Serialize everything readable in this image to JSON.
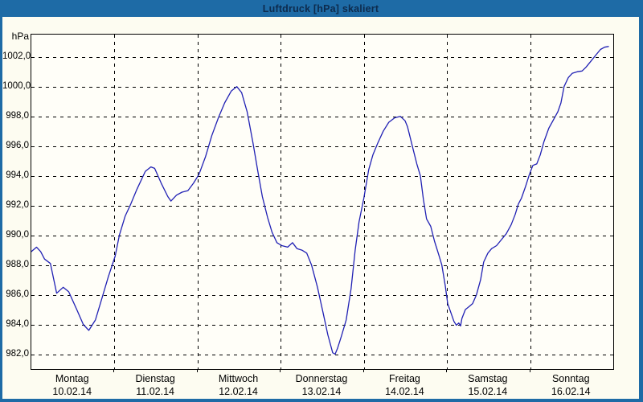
{
  "window": {
    "title": "Luftdruck [hPa] skaliert"
  },
  "colors": {
    "frame_and_titlebar": "#1e6ba6",
    "title_text": "#0d2b4d",
    "background": "#fdfcf1",
    "plot_background": "#fffef8",
    "plot_border": "#000000",
    "grid": "#000000",
    "line": "#2121b4"
  },
  "chart_data": {
    "type": "line",
    "title": "Luftdruck [hPa] skaliert",
    "unit_label": "hPa",
    "grid": "dashed, horizontal every 2 hPa and vertical at each day boundary",
    "legend": "none",
    "ylim": [
      981.0,
      1003.5
    ],
    "y_ticks": [
      1002,
      1000,
      998,
      996,
      994,
      992,
      990,
      988,
      986,
      984,
      982
    ],
    "y_tick_labels": [
      "1002,0",
      "1000,0",
      "998,0",
      "996,0",
      "994,0",
      "992,0",
      "990,0",
      "988,0",
      "986,0",
      "984,0",
      "982,0"
    ],
    "x_range_hours": [
      0,
      168
    ],
    "x_day_labels": [
      {
        "weekday": "Montag",
        "date": "10.02.14"
      },
      {
        "weekday": "Dienstag",
        "date": "11.02.14"
      },
      {
        "weekday": "Mittwoch",
        "date": "12.02.14"
      },
      {
        "weekday": "Donnerstag",
        "date": "13.02.14"
      },
      {
        "weekday": "Freitag",
        "date": "14.02.14"
      },
      {
        "weekday": "Samstag",
        "date": "15.02.14"
      },
      {
        "weekday": "Sonntag",
        "date": "16.02.14"
      }
    ],
    "series": [
      {
        "name": "Luftdruck",
        "color": "#2121b4",
        "points_hours_hpa": [
          [
            0,
            988.9
          ],
          [
            1.5,
            989.2
          ],
          [
            2.7,
            988.9
          ],
          [
            3.8,
            988.4
          ],
          [
            5.5,
            988.1
          ],
          [
            7.3,
            986.1
          ],
          [
            9.2,
            986.5
          ],
          [
            10.8,
            986.2
          ],
          [
            13.1,
            985.0
          ],
          [
            15.0,
            984.0
          ],
          [
            16.6,
            983.6
          ],
          [
            18.5,
            984.3
          ],
          [
            20.3,
            985.7
          ],
          [
            22.2,
            987.2
          ],
          [
            24.2,
            988.6
          ],
          [
            25.4,
            990.0
          ],
          [
            27.1,
            991.3
          ],
          [
            28.7,
            992.1
          ],
          [
            30.5,
            993.1
          ],
          [
            32.9,
            994.3
          ],
          [
            34.5,
            994.6
          ],
          [
            35.6,
            994.5
          ],
          [
            37.5,
            993.5
          ],
          [
            39.4,
            992.6
          ],
          [
            40.3,
            992.3
          ],
          [
            41.9,
            992.7
          ],
          [
            43.5,
            992.9
          ],
          [
            45.2,
            993.0
          ],
          [
            46.8,
            993.5
          ],
          [
            48.4,
            994.1
          ],
          [
            50.3,
            995.3
          ],
          [
            52.1,
            996.7
          ],
          [
            54.0,
            997.9
          ],
          [
            55.8,
            998.9
          ],
          [
            57.7,
            999.7
          ],
          [
            59.3,
            1000.0
          ],
          [
            60.7,
            999.6
          ],
          [
            62.3,
            998.3
          ],
          [
            64.0,
            996.2
          ],
          [
            65.4,
            994.3
          ],
          [
            66.7,
            992.6
          ],
          [
            68.2,
            991.2
          ],
          [
            69.5,
            990.2
          ],
          [
            70.9,
            989.5
          ],
          [
            72.3,
            989.3
          ],
          [
            74.0,
            989.2
          ],
          [
            75.4,
            989.5
          ],
          [
            76.7,
            989.1
          ],
          [
            78.1,
            989.0
          ],
          [
            79.5,
            988.8
          ],
          [
            80.9,
            988.0
          ],
          [
            82.6,
            986.5
          ],
          [
            84.2,
            984.8
          ],
          [
            85.6,
            983.3
          ],
          [
            87.0,
            982.1
          ],
          [
            87.7,
            982.0
          ],
          [
            88.4,
            982.4
          ],
          [
            89.5,
            983.2
          ],
          [
            90.9,
            984.3
          ],
          [
            92.3,
            986.4
          ],
          [
            93.5,
            989.0
          ],
          [
            94.6,
            990.9
          ],
          [
            96.0,
            992.5
          ],
          [
            97.4,
            994.4
          ],
          [
            98.6,
            995.4
          ],
          [
            100.0,
            996.2
          ],
          [
            101.6,
            997.0
          ],
          [
            103.2,
            997.6
          ],
          [
            104.9,
            997.9
          ],
          [
            106.5,
            998.0
          ],
          [
            107.9,
            997.7
          ],
          [
            108.6,
            997.3
          ],
          [
            110.0,
            996.0
          ],
          [
            111.3,
            994.8
          ],
          [
            112.3,
            994.0
          ],
          [
            113.2,
            992.4
          ],
          [
            114.1,
            991.1
          ],
          [
            115.3,
            990.6
          ],
          [
            116.4,
            989.6
          ],
          [
            117.6,
            988.7
          ],
          [
            118.5,
            988.0
          ],
          [
            119.5,
            986.6
          ],
          [
            120.2,
            985.4
          ],
          [
            121.1,
            984.8
          ],
          [
            122.0,
            984.2
          ],
          [
            122.7,
            983.95
          ],
          [
            123.4,
            984.1
          ],
          [
            123.9,
            983.9
          ],
          [
            124.3,
            984.4
          ],
          [
            125.3,
            985.0
          ],
          [
            126.4,
            985.2
          ],
          [
            127.4,
            985.4
          ],
          [
            128.5,
            986.0
          ],
          [
            129.7,
            987.0
          ],
          [
            130.6,
            988.2
          ],
          [
            131.8,
            988.8
          ],
          [
            132.9,
            989.1
          ],
          [
            134.3,
            989.3
          ],
          [
            135.7,
            989.7
          ],
          [
            137.1,
            990.1
          ],
          [
            138.5,
            990.7
          ],
          [
            139.7,
            991.4
          ],
          [
            140.6,
            992.1
          ],
          [
            141.5,
            992.5
          ],
          [
            142.7,
            993.3
          ],
          [
            143.8,
            994.1
          ],
          [
            144.8,
            994.7
          ],
          [
            145.9,
            994.8
          ],
          [
            146.9,
            995.4
          ],
          [
            148.0,
            996.3
          ],
          [
            149.4,
            997.2
          ],
          [
            150.8,
            997.8
          ],
          [
            152.0,
            998.3
          ],
          [
            152.9,
            998.9
          ],
          [
            153.8,
            1000.0
          ],
          [
            155.0,
            1000.6
          ],
          [
            156.2,
            1000.9
          ],
          [
            157.6,
            1001.0
          ],
          [
            159.0,
            1001.05
          ],
          [
            160.1,
            1001.3
          ],
          [
            161.5,
            1001.7
          ],
          [
            162.9,
            1002.1
          ],
          [
            164.3,
            1002.5
          ],
          [
            165.5,
            1002.65
          ],
          [
            166.6,
            1002.7
          ]
        ]
      }
    ]
  }
}
